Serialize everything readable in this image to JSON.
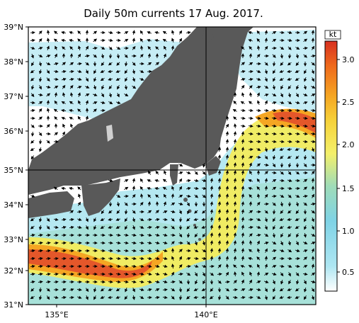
{
  "title": "Daily 50m currents 17 Aug. 2017.",
  "lat_labels": [
    "39°N",
    "38°N",
    "37°N",
    "36°N",
    "35°N",
    "34°N",
    "33°N",
    "32°N",
    "31°N"
  ],
  "lon_labels": [
    "135°E",
    "140°E"
  ],
  "colorbar": {
    "unit": "kt",
    "ticks": [
      "3.0",
      "2.5",
      "2.0",
      "1.5",
      "1.0",
      "0.5"
    ],
    "stops": [
      "#ffffff",
      "#aee6f2",
      "#7fd3e6",
      "#9fdcb8",
      "#f4f06a",
      "#f6d23a",
      "#f5a623",
      "#ef6a1c",
      "#d7301f"
    ]
  },
  "colors": {
    "land": "#595959",
    "lake": "#d0d0d0",
    "water": "#ffffff",
    "grid": "#000000"
  }
}
